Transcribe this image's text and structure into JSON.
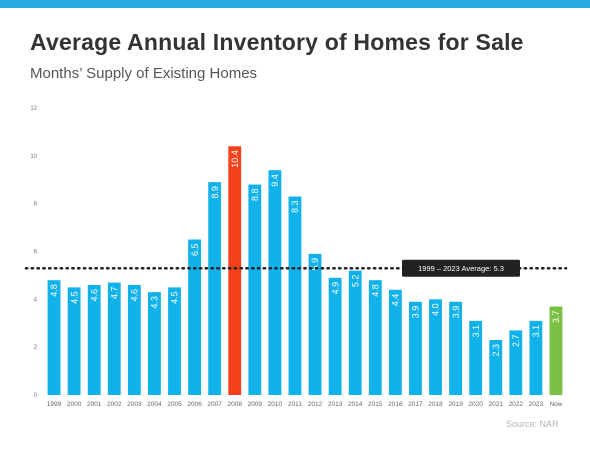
{
  "header": {
    "title": "Average Annual Inventory of Homes for Sale",
    "subtitle": "Months’ Supply of Existing Homes"
  },
  "source": "Source: NAR",
  "chart_data": {
    "type": "bar",
    "title": "Average Annual Inventory of Homes for Sale",
    "subtitle": "Months’ Supply of Existing Homes",
    "xlabel": "",
    "ylabel": "",
    "ylim": [
      0,
      12
    ],
    "yticks": [
      "0",
      "2",
      "4",
      "6",
      "8",
      "10",
      "12"
    ],
    "grid": false,
    "categories": [
      "1999",
      "2000",
      "2001",
      "2002",
      "2003",
      "2004",
      "2005",
      "2006",
      "2007",
      "2008",
      "2009",
      "2010",
      "2011",
      "2012",
      "2013",
      "2014",
      "2015",
      "2016",
      "2017",
      "2018",
      "2019",
      "2020",
      "2021",
      "2022",
      "2023",
      "Now"
    ],
    "values": [
      4.8,
      4.5,
      4.6,
      4.7,
      4.6,
      4.3,
      4.5,
      6.5,
      8.9,
      10.4,
      8.8,
      9.4,
      8.3,
      5.9,
      4.9,
      5.2,
      4.8,
      4.4,
      3.9,
      4.0,
      3.9,
      3.1,
      2.3,
      2.7,
      3.1,
      3.7
    ],
    "value_labels": [
      "4.8",
      "4.5",
      "4.6",
      "4.7",
      "4.6",
      "4.3",
      "4.5",
      "6.5",
      "8.9",
      "10.4",
      "8.8",
      "9.4",
      "8.3",
      "5.9",
      "4.9",
      "5.2",
      "4.8",
      "4.4",
      "3.9",
      "4.0",
      "3.9",
      "3.1",
      "2.3",
      "2.7",
      "3.1",
      "3.7"
    ],
    "average": {
      "label": "1999 – 2023 Average:  5.3",
      "value": 5.3
    },
    "colors": {
      "default": "#11b1ea",
      "highlight": "#f5401c",
      "now": "#7ac143",
      "average_line": "#222222",
      "average_box": "#222222"
    },
    "highlight_category": "2008",
    "now_category": "Now"
  }
}
